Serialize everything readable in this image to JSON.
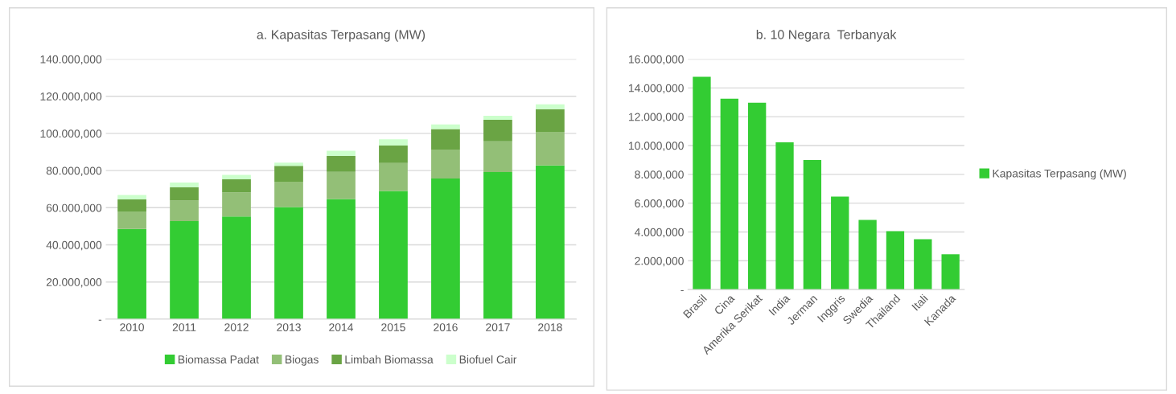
{
  "chart_data": [
    {
      "type": "bar",
      "title": "a. Kapasitas Terpasang (MW)",
      "stacked": true,
      "categories": [
        "2010",
        "2011",
        "2012",
        "2013",
        "2014",
        "2015",
        "2016",
        "2017",
        "2018"
      ],
      "series": [
        {
          "name": "Biomassa Padat",
          "color": "#33cc33",
          "values": [
            48500,
            52800,
            55300,
            60300,
            64700,
            69000,
            75700,
            79200,
            82700
          ]
        },
        {
          "name": "Biogas",
          "color": "#93bf77",
          "values": [
            9500,
            11000,
            12900,
            13700,
            14600,
            15000,
            15600,
            16500,
            18100
          ]
        },
        {
          "name": "Limbah Biomassa",
          "color": "#6aa444",
          "values": [
            6500,
            7200,
            7100,
            8500,
            8500,
            9500,
            11000,
            11600,
            12200
          ]
        },
        {
          "name": "Biofuel Cair",
          "color": "#ccffcc",
          "values": [
            2300,
            2500,
            2400,
            1800,
            2900,
            3300,
            2500,
            2200,
            2700
          ]
        }
      ],
      "ylim": [
        0,
        140000
      ],
      "yticks": [
        {
          "value": 0,
          "label": "-"
        },
        {
          "value": 20000,
          "label": "20.000,000"
        },
        {
          "value": 40000,
          "label": "40.000,000"
        },
        {
          "value": 60000,
          "label": "60.000,000"
        },
        {
          "value": 80000,
          "label": "80.000,000"
        },
        {
          "value": 100000,
          "label": "100.000,000"
        },
        {
          "value": 120000,
          "label": "120.000,000"
        },
        {
          "value": 140000,
          "label": "140.000,000"
        }
      ],
      "grid": "y",
      "legend": "bottom"
    },
    {
      "type": "bar",
      "title": "b. 10 Negara  Terbanyak",
      "categories": [
        "Brasil",
        "Cina",
        "Amerika Serikat",
        "India",
        "Jerman",
        "Inggris",
        "Swedia",
        "Thailand",
        "Itali",
        "Kanada"
      ],
      "series": [
        {
          "name": "Kapasitas Terpasang (MW)",
          "color": "#33cc33",
          "values": [
            14770,
            13250,
            12970,
            10220,
            8990,
            6450,
            4830,
            4060,
            3490,
            2450
          ]
        }
      ],
      "ylim": [
        0,
        16000
      ],
      "yticks": [
        {
          "value": 0,
          "label": "-"
        },
        {
          "value": 2000,
          "label": "2.000,000"
        },
        {
          "value": 4000,
          "label": "4.000,000"
        },
        {
          "value": 6000,
          "label": "6.000,000"
        },
        {
          "value": 8000,
          "label": "8.000,000"
        },
        {
          "value": 10000,
          "label": "10.000,000"
        },
        {
          "value": 12000,
          "label": "12.000,000"
        },
        {
          "value": 14000,
          "label": "14.000,000"
        },
        {
          "value": 16000,
          "label": "16.000,000"
        }
      ],
      "grid": "y",
      "legend": "right"
    }
  ]
}
